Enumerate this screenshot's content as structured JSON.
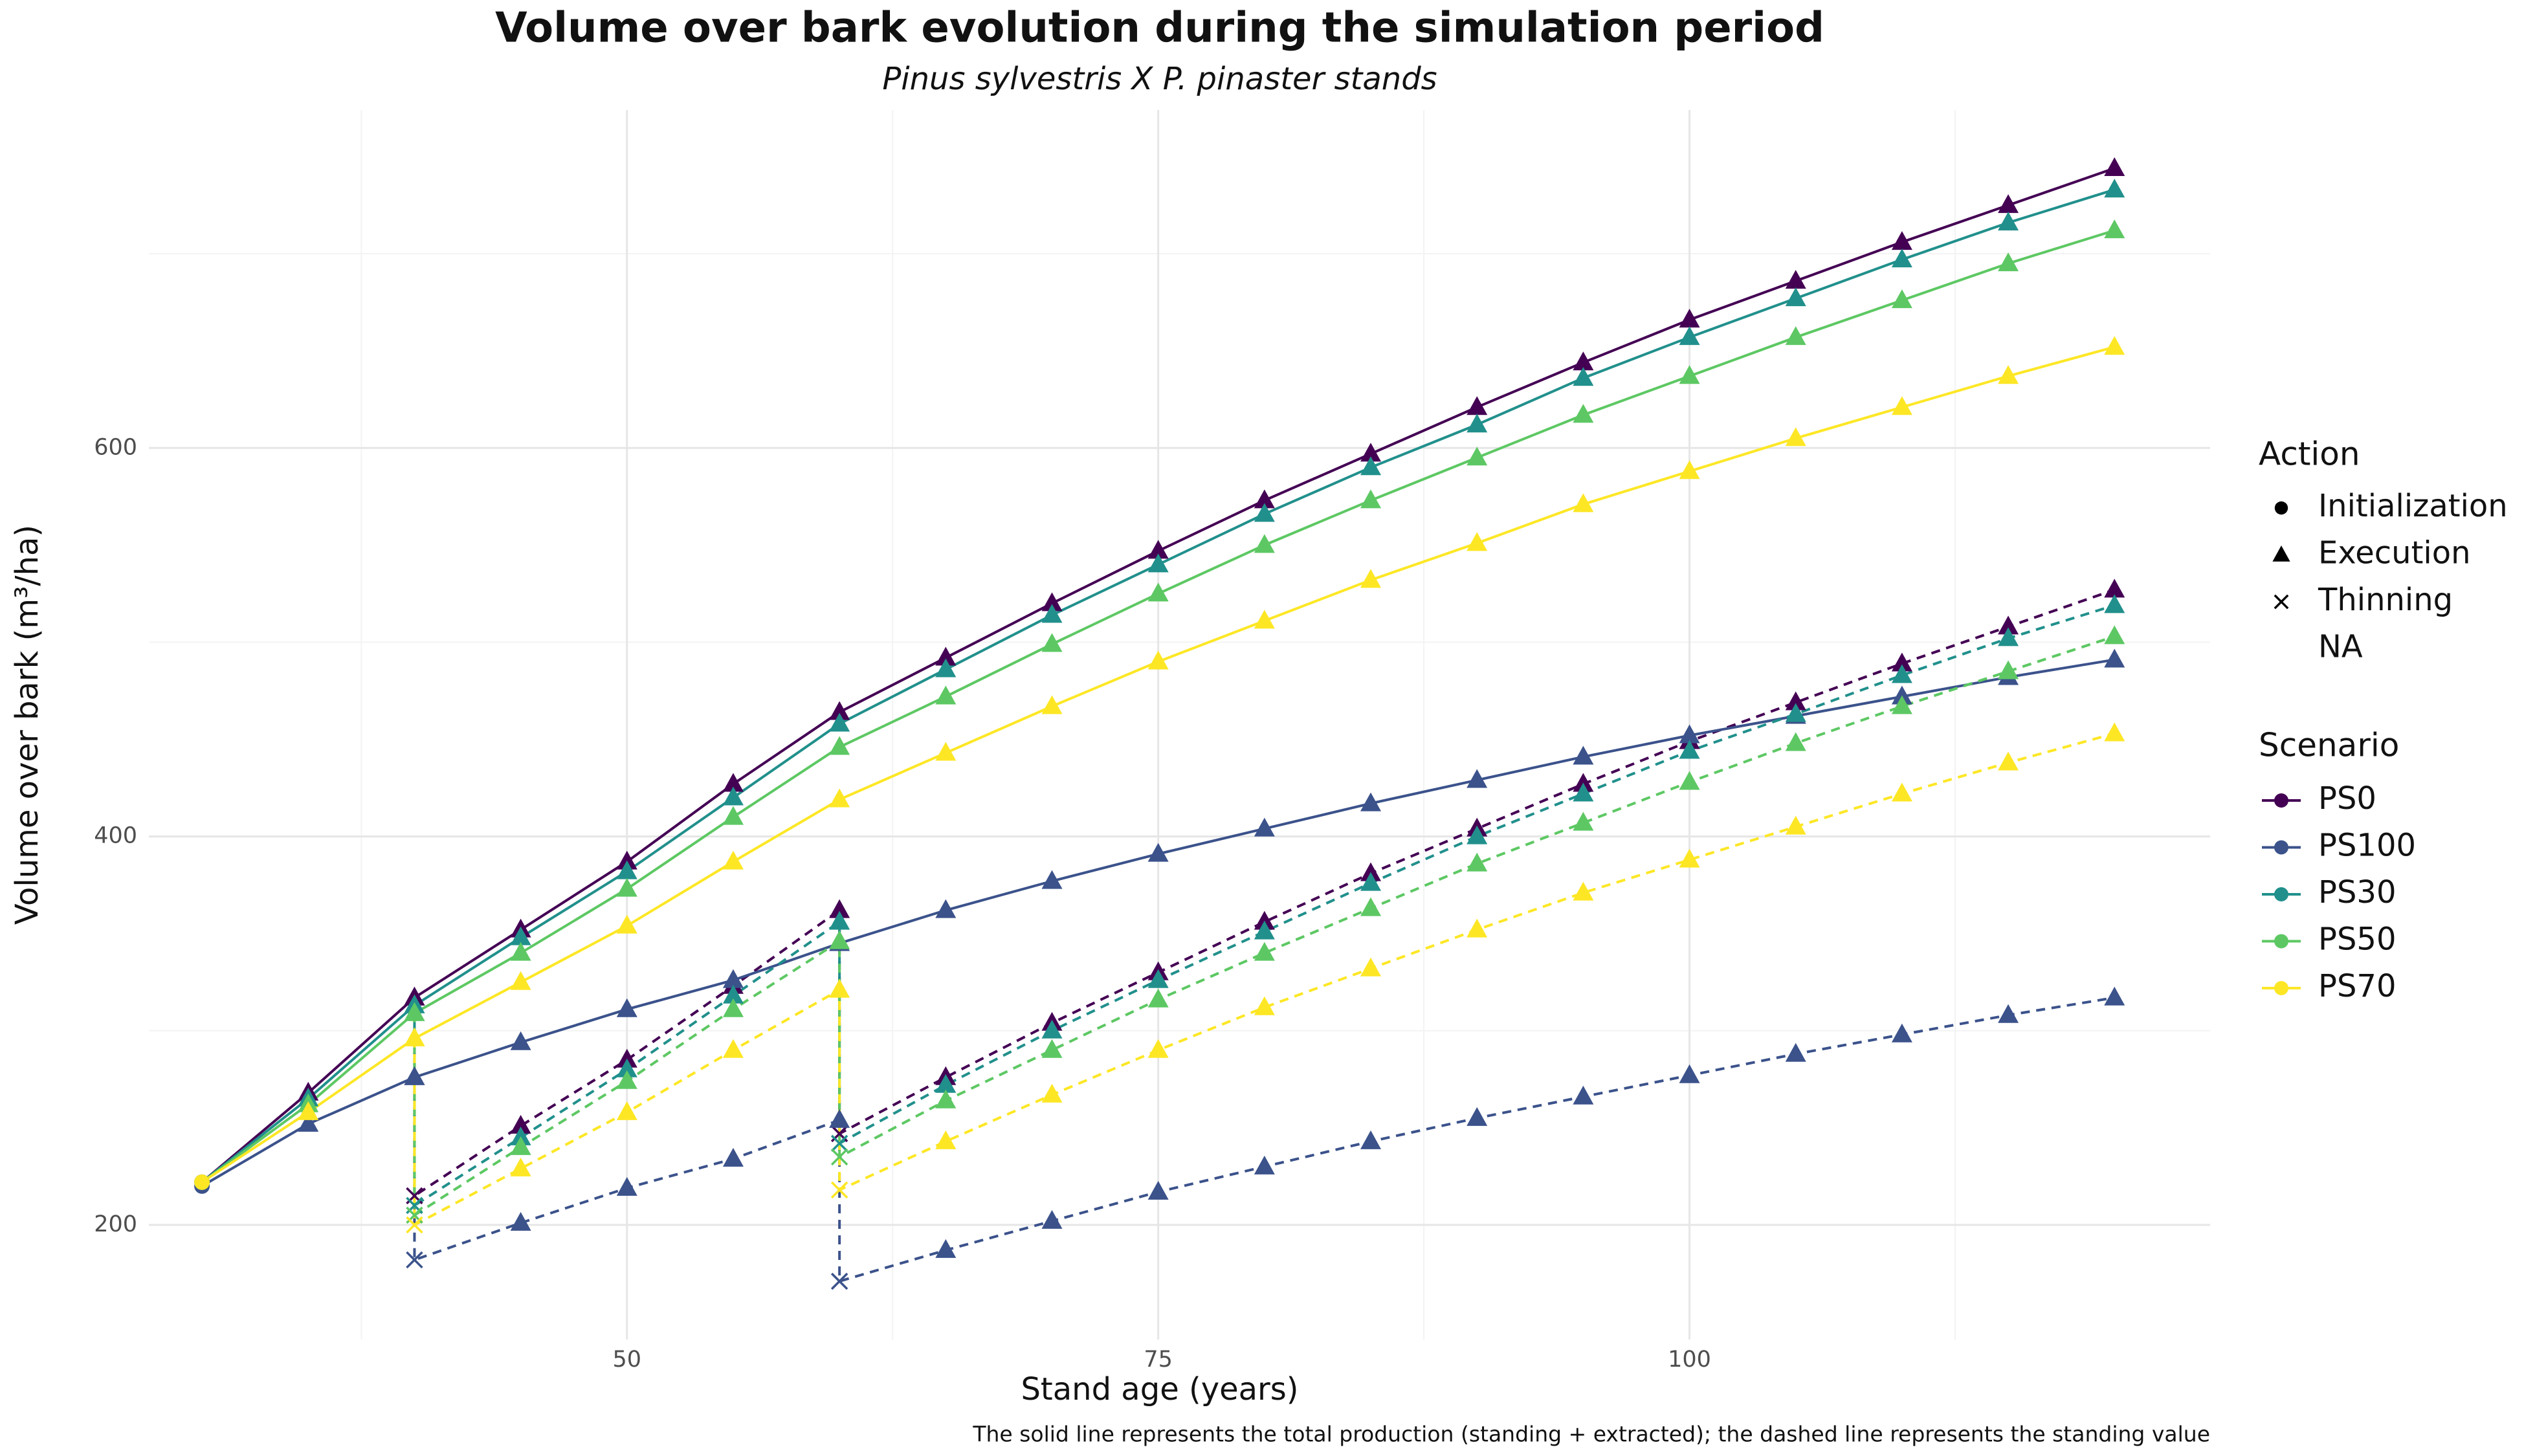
{
  "chart_data": {
    "type": "line",
    "title": "Volume over bark evolution during the simulation period",
    "subtitle": "Pinus sylvestris X P. pinaster stands",
    "x_label": "Stand age (years)",
    "y_label": "Volume over bark (m³/ha)",
    "caption": "The solid line represents the total production (standing + extracted); the dashed line represents the standing value",
    "xlim": [
      27.5,
      124.5
    ],
    "ylim": [
      141,
      774
    ],
    "xticks": [
      50,
      75,
      100
    ],
    "yticks": [
      200,
      400,
      600
    ],
    "xminor": [
      37.5,
      62.5,
      87.5,
      112.5
    ],
    "yminor": [
      300,
      500,
      700
    ],
    "grid": true,
    "legend_position": "right",
    "action_legend": {
      "title": "Action",
      "items": [
        {
          "label": "Initialization",
          "shape": "circle"
        },
        {
          "label": "Execution",
          "shape": "triangle"
        },
        {
          "label": "Thinning",
          "shape": "cross"
        },
        {
          "label": "NA",
          "shape": null
        }
      ]
    },
    "scenario_legend_title": "Scenario",
    "x": [
      30,
      35,
      40,
      45,
      50,
      55,
      60,
      65,
      70,
      75,
      80,
      85,
      90,
      95,
      100,
      105,
      110,
      115,
      120
    ],
    "series": [
      {
        "name": "PS0",
        "color": "#440154",
        "values": [
          222,
          268,
          317,
          352,
          387,
          427,
          464,
          492,
          520,
          547,
          573,
          597,
          621,
          644,
          666,
          686,
          706,
          725,
          744
        ],
        "actions": [
          "Initialization",
          "Execution",
          "Execution",
          "Execution",
          "Execution",
          "Execution",
          "Execution",
          "Execution",
          "Execution",
          "Execution",
          "Execution",
          "Execution",
          "Execution",
          "Execution",
          "Execution",
          "Execution",
          "Execution",
          "Execution",
          "Execution"
        ],
        "standing": {
          "x": [
            40,
            40,
            45,
            50,
            55,
            60,
            60,
            65,
            70,
            75,
            80,
            85,
            90,
            95,
            100,
            105,
            110,
            115,
            120
          ],
          "values": [
            317,
            215,
            251,
            285,
            323,
            362,
            247,
            276,
            304,
            330,
            356,
            381,
            404,
            427,
            449,
            469,
            489,
            508,
            527
          ],
          "actions": [
            "Execution",
            "Thinning",
            "Execution",
            "Execution",
            "Execution",
            "Execution",
            "Thinning",
            "Execution",
            "Execution",
            "Execution",
            "Execution",
            "Execution",
            "Execution",
            "Execution",
            "Execution",
            "Execution",
            "Execution",
            "Execution",
            "Execution"
          ]
        }
      },
      {
        "name": "PS100",
        "color": "#3b528b",
        "values": [
          220,
          252,
          276,
          294,
          311,
          326,
          345,
          362,
          377,
          391,
          404,
          417,
          429,
          441,
          452,
          462,
          472,
          482,
          491
        ],
        "actions": [
          "Initialization",
          "Execution",
          "Execution",
          "Execution",
          "Execution",
          "Execution",
          "Execution",
          "Execution",
          "Execution",
          "Execution",
          "Execution",
          "Execution",
          "Execution",
          "Execution",
          "Execution",
          "Execution",
          "Execution",
          "Execution",
          "Execution"
        ],
        "standing": {
          "x": [
            40,
            40,
            45,
            50,
            55,
            60,
            60,
            65,
            70,
            75,
            80,
            85,
            90,
            95,
            100,
            105,
            110,
            115,
            120
          ],
          "values": [
            276,
            182,
            201,
            219,
            234,
            254,
            171,
            187,
            202,
            217,
            230,
            243,
            255,
            266,
            277,
            288,
            298,
            308,
            317
          ],
          "actions": [
            "Execution",
            "Thinning",
            "Execution",
            "Execution",
            "Execution",
            "Execution",
            "Thinning",
            "Execution",
            "Execution",
            "Execution",
            "Execution",
            "Execution",
            "Execution",
            "Execution",
            "Execution",
            "Execution",
            "Execution",
            "Execution",
            "Execution"
          ]
        }
      },
      {
        "name": "PS30",
        "color": "#21908c",
        "values": [
          222,
          265,
          313,
          348,
          382,
          420,
          458,
          486,
          514,
          540,
          566,
          590,
          612,
          636,
          657,
          677,
          697,
          716,
          733
        ],
        "actions": [
          "Initialization",
          "Execution",
          "Execution",
          "Execution",
          "Execution",
          "Execution",
          "Execution",
          "Execution",
          "Execution",
          "Execution",
          "Execution",
          "Execution",
          "Execution",
          "Execution",
          "Execution",
          "Execution",
          "Execution",
          "Execution",
          "Execution"
        ],
        "standing": {
          "x": [
            40,
            40,
            45,
            50,
            55,
            60,
            60,
            65,
            70,
            75,
            80,
            85,
            90,
            95,
            100,
            105,
            110,
            115,
            120
          ],
          "values": [
            313,
            210,
            245,
            280,
            318,
            356,
            242,
            272,
            300,
            326,
            351,
            376,
            400,
            422,
            444,
            463,
            483,
            502,
            519
          ],
          "actions": [
            "Execution",
            "Thinning",
            "Execution",
            "Execution",
            "Execution",
            "Execution",
            "Thinning",
            "Execution",
            "Execution",
            "Execution",
            "Execution",
            "Execution",
            "Execution",
            "Execution",
            "Execution",
            "Execution",
            "Execution",
            "Execution",
            "Execution"
          ]
        }
      },
      {
        "name": "PS50",
        "color": "#5dc863",
        "values": [
          222,
          262,
          309,
          340,
          373,
          410,
          446,
          472,
          499,
          525,
          550,
          573,
          595,
          617,
          637,
          657,
          676,
          695,
          712
        ],
        "actions": [
          "Initialization",
          "Execution",
          "Execution",
          "Execution",
          "Execution",
          "Execution",
          "Execution",
          "Execution",
          "Execution",
          "Execution",
          "Execution",
          "Execution",
          "Execution",
          "Execution",
          "Execution",
          "Execution",
          "Execution",
          "Execution",
          "Execution"
        ],
        "standing": {
          "x": [
            40,
            40,
            45,
            50,
            55,
            60,
            60,
            65,
            70,
            75,
            80,
            85,
            90,
            95,
            100,
            105,
            110,
            115,
            120
          ],
          "values": [
            309,
            205,
            240,
            274,
            311,
            346,
            235,
            264,
            290,
            316,
            340,
            363,
            386,
            407,
            428,
            448,
            467,
            485,
            503
          ],
          "actions": [
            "Execution",
            "Thinning",
            "Execution",
            "Execution",
            "Execution",
            "Execution",
            "Thinning",
            "Execution",
            "Execution",
            "Execution",
            "Execution",
            "Execution",
            "Execution",
            "Execution",
            "Execution",
            "Execution",
            "Execution",
            "Execution",
            "Execution"
          ]
        }
      },
      {
        "name": "PS70",
        "color": "#fde725",
        "values": [
          222,
          258,
          296,
          325,
          354,
          387,
          419,
          443,
          467,
          490,
          511,
          532,
          551,
          571,
          588,
          605,
          621,
          637,
          652
        ],
        "actions": [
          "Initialization",
          "Execution",
          "Execution",
          "Execution",
          "Execution",
          "Execution",
          "Execution",
          "Execution",
          "Execution",
          "Execution",
          "Execution",
          "Execution",
          "Execution",
          "Execution",
          "Execution",
          "Execution",
          "Execution",
          "Execution",
          "Execution"
        ],
        "standing": {
          "x": [
            40,
            40,
            45,
            50,
            55,
            60,
            60,
            65,
            70,
            75,
            80,
            85,
            90,
            95,
            100,
            105,
            110,
            115,
            120
          ],
          "values": [
            296,
            200,
            229,
            258,
            290,
            321,
            218,
            243,
            267,
            290,
            312,
            332,
            352,
            371,
            388,
            405,
            422,
            438,
            453
          ],
          "actions": [
            "Execution",
            "Thinning",
            "Execution",
            "Execution",
            "Execution",
            "Execution",
            "Thinning",
            "Execution",
            "Execution",
            "Execution",
            "Execution",
            "Execution",
            "Execution",
            "Execution",
            "Execution",
            "Execution",
            "Execution",
            "Execution",
            "Execution"
          ]
        }
      }
    ]
  }
}
